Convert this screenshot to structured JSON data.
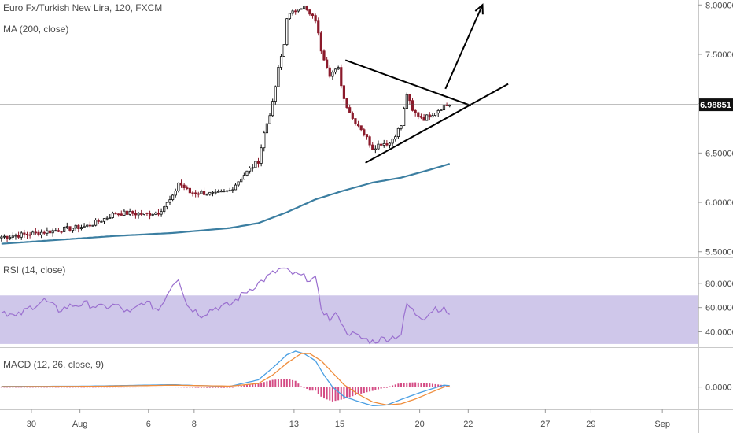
{
  "chart_data": [
    {
      "type": "candlestick",
      "title": "Euro Fx/Turkish New Lira, 120, FXCM",
      "indicator": "MA (200, close)",
      "ylim": [
        5.45,
        8.05
      ],
      "yticks": [
        "8.00000",
        "7.50000",
        "7.00000",
        "6.50000",
        "6.00000",
        "5.50000"
      ],
      "ytick_values": [
        8.0,
        7.5,
        7.0,
        6.5,
        6.0,
        5.5
      ],
      "last_price": "6.98851",
      "last_price_value": 6.98851,
      "colors": {
        "up": "#111111",
        "down": "#8b1a2b",
        "ma": "#3b7ea1",
        "drawing": "#000000"
      },
      "close_anchors": [
        [
          0,
          5.65
        ],
        [
          10,
          5.68
        ],
        [
          20,
          5.72
        ],
        [
          30,
          5.76
        ],
        [
          35,
          5.82
        ],
        [
          40,
          5.89
        ],
        [
          45,
          5.89
        ],
        [
          50,
          5.88
        ],
        [
          55,
          5.9
        ],
        [
          60,
          6.05
        ],
        [
          62,
          6.2
        ],
        [
          66,
          6.1
        ],
        [
          70,
          6.1
        ],
        [
          75,
          6.08
        ],
        [
          80,
          6.12
        ],
        [
          85,
          6.28
        ],
        [
          90,
          6.42
        ],
        [
          92,
          6.7
        ],
        [
          95,
          7.0
        ],
        [
          97,
          7.35
        ],
        [
          99,
          7.6
        ],
        [
          100,
          7.88
        ],
        [
          102,
          7.92
        ],
        [
          104,
          7.98
        ],
        [
          106,
          7.98
        ],
        [
          108,
          7.9
        ],
        [
          110,
          7.85
        ],
        [
          112,
          7.55
        ],
        [
          115,
          7.3
        ],
        [
          118,
          7.35
        ],
        [
          120,
          7.05
        ],
        [
          123,
          6.85
        ],
        [
          126,
          6.75
        ],
        [
          130,
          6.55
        ],
        [
          133,
          6.6
        ],
        [
          136,
          6.6
        ],
        [
          140,
          6.78
        ],
        [
          142,
          7.1
        ],
        [
          144,
          6.92
        ],
        [
          148,
          6.85
        ],
        [
          152,
          6.92
        ],
        [
          155,
          6.98
        ],
        [
          157,
          6.99
        ]
      ],
      "ma_anchors": [
        [
          0,
          5.58
        ],
        [
          20,
          5.62
        ],
        [
          40,
          5.66
        ],
        [
          60,
          5.69
        ],
        [
          80,
          5.74
        ],
        [
          90,
          5.79
        ],
        [
          100,
          5.9
        ],
        [
          110,
          6.03
        ],
        [
          120,
          6.12
        ],
        [
          130,
          6.2
        ],
        [
          140,
          6.25
        ],
        [
          150,
          6.33
        ],
        [
          157,
          6.39
        ]
      ],
      "annotations": {
        "upper_trendline": [
          [
            121,
            7.44
          ],
          [
            165,
            6.98
          ]
        ],
        "lower_trendline": [
          [
            128,
            6.4
          ],
          [
            178,
            7.2
          ]
        ],
        "breakout_arrow": [
          [
            156,
            7.15
          ],
          [
            169,
            8.0
          ]
        ]
      }
    },
    {
      "type": "line",
      "title": "RSI (14, close)",
      "ylim": [
        28,
        100
      ],
      "yticks": [
        "80.0000",
        "60.0000",
        "40.0000"
      ],
      "ytick_values": [
        80,
        60,
        40
      ],
      "band": [
        30,
        70
      ],
      "colors": {
        "line": "#9a6fcf",
        "band": "#cfc7ea"
      },
      "anchors": [
        [
          0,
          58
        ],
        [
          5,
          52
        ],
        [
          10,
          60
        ],
        [
          15,
          66
        ],
        [
          20,
          58
        ],
        [
          25,
          62
        ],
        [
          30,
          63
        ],
        [
          35,
          60
        ],
        [
          40,
          62
        ],
        [
          45,
          55
        ],
        [
          50,
          65
        ],
        [
          55,
          58
        ],
        [
          60,
          80
        ],
        [
          62,
          85
        ],
        [
          65,
          62
        ],
        [
          70,
          54
        ],
        [
          75,
          60
        ],
        [
          80,
          62
        ],
        [
          85,
          72
        ],
        [
          90,
          80
        ],
        [
          95,
          88
        ],
        [
          98,
          92
        ],
        [
          100,
          90
        ],
        [
          103,
          87
        ],
        [
          106,
          85
        ],
        [
          110,
          83
        ],
        [
          112,
          60
        ],
        [
          115,
          50
        ],
        [
          118,
          55
        ],
        [
          120,
          42
        ],
        [
          123,
          38
        ],
        [
          126,
          35
        ],
        [
          130,
          32
        ],
        [
          133,
          34
        ],
        [
          136,
          35
        ],
        [
          140,
          38
        ],
        [
          142,
          63
        ],
        [
          145,
          55
        ],
        [
          148,
          52
        ],
        [
          152,
          60
        ],
        [
          155,
          58
        ],
        [
          157,
          55
        ]
      ]
    },
    {
      "type": "line",
      "title": "MACD (12, 26, close, 9)",
      "ylim": [
        -0.09,
        0.16
      ],
      "yticks": [
        "0.0000"
      ],
      "ytick_values": [
        0
      ],
      "colors": {
        "macd": "#4a9fe3",
        "signal": "#ef8d3c",
        "hist": "#cc2b6e"
      },
      "macd_anchors": [
        [
          0,
          0.003
        ],
        [
          30,
          0.004
        ],
        [
          50,
          0.008
        ],
        [
          60,
          0.01
        ],
        [
          70,
          0.006
        ],
        [
          80,
          0.003
        ],
        [
          90,
          0.03
        ],
        [
          95,
          0.08
        ],
        [
          100,
          0.135
        ],
        [
          103,
          0.15
        ],
        [
          106,
          0.14
        ],
        [
          110,
          0.11
        ],
        [
          113,
          0.05
        ],
        [
          116,
          0.0
        ],
        [
          120,
          -0.04
        ],
        [
          125,
          -0.06
        ],
        [
          130,
          -0.078
        ],
        [
          135,
          -0.075
        ],
        [
          140,
          -0.052
        ],
        [
          145,
          -0.03
        ],
        [
          150,
          -0.01
        ],
        [
          155,
          0.008
        ],
        [
          157,
          0.006
        ]
      ],
      "signal_anchors": [
        [
          0,
          0.002
        ],
        [
          30,
          0.003
        ],
        [
          50,
          0.006
        ],
        [
          60,
          0.008
        ],
        [
          70,
          0.006
        ],
        [
          80,
          0.004
        ],
        [
          90,
          0.015
        ],
        [
          95,
          0.05
        ],
        [
          100,
          0.1
        ],
        [
          105,
          0.14
        ],
        [
          108,
          0.14
        ],
        [
          112,
          0.11
        ],
        [
          116,
          0.06
        ],
        [
          120,
          0.01
        ],
        [
          125,
          -0.03
        ],
        [
          130,
          -0.062
        ],
        [
          135,
          -0.075
        ],
        [
          140,
          -0.07
        ],
        [
          145,
          -0.05
        ],
        [
          150,
          -0.025
        ],
        [
          155,
          0.0
        ],
        [
          157,
          0.004
        ]
      ]
    }
  ],
  "x_axis": {
    "ticks": [
      {
        "label": "30",
        "i": 11
      },
      {
        "label": "Aug",
        "i": 28
      },
      {
        "label": "6",
        "i": 52
      },
      {
        "label": "8",
        "i": 68
      },
      {
        "label": "13",
        "i": 103
      },
      {
        "label": "15",
        "i": 119
      },
      {
        "label": "20",
        "i": 147
      },
      {
        "label": "22",
        "i": 164
      },
      {
        "label": "27",
        "i": 191
      },
      {
        "label": "29",
        "i": 207
      },
      {
        "label": "Sep",
        "i": 232
      }
    ]
  }
}
